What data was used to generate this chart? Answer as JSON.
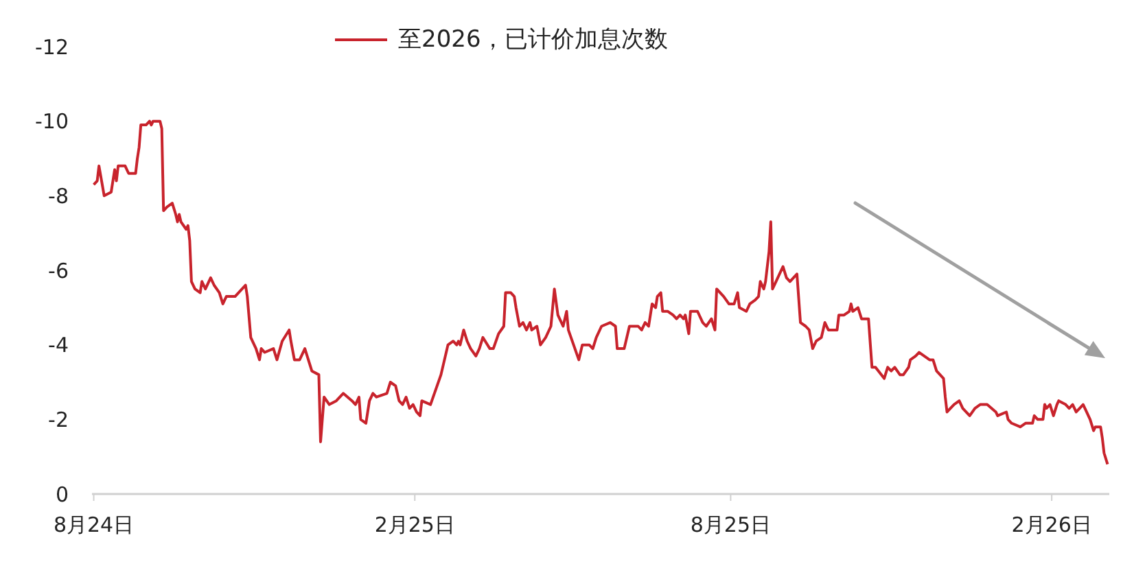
{
  "chart_data": {
    "type": "line",
    "x": [
      "2024-08-01",
      "2024-08-03",
      "2024-08-04",
      "2024-08-07",
      "2024-08-11",
      "2024-08-13",
      "2024-08-14",
      "2024-08-15",
      "2024-08-19",
      "2024-08-21",
      "2024-08-25",
      "2024-08-26",
      "2024-08-27",
      "2024-08-28",
      "2024-08-31",
      "2024-09-02",
      "2024-09-03",
      "2024-09-04",
      "2024-09-08",
      "2024-09-09",
      "2024-09-10",
      "2024-09-12",
      "2024-09-15",
      "2024-09-17",
      "2024-09-18",
      "2024-09-19",
      "2024-09-20",
      "2024-09-23",
      "2024-09-24",
      "2024-09-25",
      "2024-09-26",
      "2024-09-28",
      "2024-10-01",
      "2024-10-02",
      "2024-10-04",
      "2024-10-07",
      "2024-10-09",
      "2024-10-12",
      "2024-10-14",
      "2024-10-16",
      "2024-10-21",
      "2024-10-23",
      "2024-10-27",
      "2024-10-28",
      "2024-10-30",
      "2024-11-02",
      "2024-11-04",
      "2024-11-05",
      "2024-11-07",
      "2024-11-12",
      "2024-11-14",
      "2024-11-17",
      "2024-11-21",
      "2024-11-22",
      "2024-11-24",
      "2024-11-27",
      "2024-11-30",
      "2024-12-02",
      "2024-12-04",
      "2024-12-08",
      "2024-12-09",
      "2024-12-11",
      "2024-12-14",
      "2024-12-18",
      "2024-12-22",
      "2024-12-27",
      "2024-12-29",
      "2024-12-31",
      "2025-01-01",
      "2025-01-04",
      "2025-01-06",
      "2025-01-08",
      "2025-01-10",
      "2025-01-16",
      "2025-01-18",
      "2025-01-21",
      "2025-01-23",
      "2025-01-25",
      "2025-01-27",
      "2025-01-29",
      "2025-01-31",
      "2025-02-02",
      "2025-02-04",
      "2025-02-05",
      "2025-02-10",
      "2025-02-13",
      "2025-02-16",
      "2025-02-20",
      "2025-02-23",
      "2025-02-25",
      "2025-02-26",
      "2025-02-27",
      "2025-03-01",
      "2025-03-03",
      "2025-03-05",
      "2025-03-08",
      "2025-03-10",
      "2025-03-12",
      "2025-03-16",
      "2025-03-18",
      "2025-03-21",
      "2025-03-24",
      "2025-03-25",
      "2025-03-28",
      "2025-03-30",
      "2025-03-31",
      "2025-04-02",
      "2025-04-04",
      "2025-04-06",
      "2025-04-08",
      "2025-04-09",
      "2025-04-12",
      "2025-04-14",
      "2025-04-17",
      "2025-04-20",
      "2025-04-22",
      "2025-04-24",
      "2025-04-27",
      "2025-04-29",
      "2025-04-30",
      "2025-05-03",
      "2025-05-06",
      "2025-05-08",
      "2025-05-12",
      "2025-05-14",
      "2025-05-16",
      "2025-05-19",
      "2025-05-24",
      "2025-05-27",
      "2025-05-28",
      "2025-06-01",
      "2025-06-04",
      "2025-06-09",
      "2025-06-11",
      "2025-06-13",
      "2025-06-15",
      "2025-06-17",
      "2025-06-19",
      "2025-06-20",
      "2025-06-22",
      "2025-06-23",
      "2025-06-26",
      "2025-06-29",
      "2025-07-01",
      "2025-07-03",
      "2025-07-05",
      "2025-07-06",
      "2025-07-08",
      "2025-07-09",
      "2025-07-13",
      "2025-07-16",
      "2025-07-18",
      "2025-07-21",
      "2025-07-23",
      "2025-07-24",
      "2025-07-28",
      "2025-07-31",
      "2025-08-03",
      "2025-08-05",
      "2025-08-06",
      "2025-08-10",
      "2025-08-12",
      "2025-08-15",
      "2025-08-17",
      "2025-08-18",
      "2025-08-20",
      "2025-08-21",
      "2025-08-23",
      "2025-08-24",
      "2025-08-25",
      "2025-08-27",
      "2025-08-29",
      "2025-08-31",
      "2025-09-02",
      "2025-09-04",
      "2025-09-08",
      "2025-09-10",
      "2025-09-13",
      "2025-09-15",
      "2025-09-17",
      "2025-09-19",
      "2025-09-22",
      "2025-09-24",
      "2025-09-26",
      "2025-10-01",
      "2025-10-02",
      "2025-10-05",
      "2025-10-08",
      "2025-10-09",
      "2025-10-10",
      "2025-10-13",
      "2025-10-15",
      "2025-10-19",
      "2025-10-21",
      "2025-10-23",
      "2025-10-28",
      "2025-10-30",
      "2025-11-01",
      "2025-11-03",
      "2025-11-06",
      "2025-11-08",
      "2025-11-11",
      "2025-11-12",
      "2025-11-15",
      "2025-11-17",
      "2025-11-23",
      "2025-11-25",
      "2025-11-27",
      "2025-12-01",
      "2025-12-02",
      "2025-12-03",
      "2025-12-07",
      "2025-12-10",
      "2025-12-12",
      "2025-12-16",
      "2025-12-19",
      "2025-12-22",
      "2025-12-26",
      "2025-12-31",
      "2026-01-01",
      "2026-01-06",
      "2026-01-07",
      "2026-01-09",
      "2026-01-14",
      "2026-01-17",
      "2026-01-21",
      "2026-01-22",
      "2026-01-24",
      "2026-01-27",
      "2026-01-28",
      "2026-01-29",
      "2026-01-31",
      "2026-02-02",
      "2026-02-04",
      "2026-02-05",
      "2026-02-09",
      "2026-02-11",
      "2026-02-13",
      "2026-02-15",
      "2026-02-17",
      "2026-02-19",
      "2026-02-21",
      "2026-02-23",
      "2026-02-25",
      "2026-02-26",
      "2026-03-01",
      "2026-03-02",
      "2026-03-03",
      "2026-03-05"
    ],
    "series": [
      {
        "name": "至2026，已计价加息次数",
        "color": "#c8232c",
        "values": [
          -8.3,
          -8.4,
          -8.8,
          -8.0,
          -8.1,
          -8.7,
          -8.4,
          -8.8,
          -8.8,
          -8.6,
          -8.6,
          -9.0,
          -9.3,
          -9.9,
          -9.9,
          -10.0,
          -9.9,
          -10.0,
          -10.0,
          -9.8,
          -7.6,
          -7.7,
          -7.8,
          -7.5,
          -7.3,
          -7.5,
          -7.3,
          -7.1,
          -7.2,
          -6.8,
          -5.7,
          -5.5,
          -5.4,
          -5.7,
          -5.5,
          -5.8,
          -5.6,
          -5.4,
          -5.1,
          -5.3,
          -5.3,
          -5.4,
          -5.6,
          -5.3,
          -4.2,
          -3.9,
          -3.6,
          -3.9,
          -3.8,
          -3.9,
          -3.6,
          -4.1,
          -4.4,
          -4.1,
          -3.6,
          -3.6,
          -3.9,
          -3.6,
          -3.3,
          -3.2,
          -1.4,
          -2.6,
          -2.4,
          -2.5,
          -2.7,
          -2.5,
          -2.4,
          -2.6,
          -2.0,
          -1.9,
          -2.5,
          -2.7,
          -2.6,
          -2.7,
          -3.0,
          -2.9,
          -2.5,
          -2.4,
          -2.6,
          -2.3,
          -2.4,
          -2.2,
          -2.1,
          -2.5,
          -2.4,
          -2.8,
          -3.2,
          -4.0,
          -4.1,
          -4.0,
          -4.1,
          -4.0,
          -4.4,
          -4.1,
          -3.9,
          -3.7,
          -3.9,
          -4.2,
          -3.9,
          -3.9,
          -4.3,
          -4.5,
          -5.4,
          -5.4,
          -5.3,
          -5.0,
          -4.5,
          -4.6,
          -4.4,
          -4.6,
          -4.4,
          -4.5,
          -4.0,
          -4.2,
          -4.5,
          -5.5,
          -4.8,
          -4.5,
          -4.9,
          -4.4,
          -4.0,
          -3.6,
          -4.0,
          -4.0,
          -3.9,
          -4.2,
          -4.5,
          -4.6,
          -4.5,
          -3.9,
          -3.9,
          -4.5,
          -4.5,
          -4.4,
          -4.6,
          -4.5,
          -5.1,
          -5.0,
          -5.3,
          -5.4,
          -4.9,
          -4.9,
          -4.8,
          -4.7,
          -4.8,
          -4.7,
          -4.8,
          -4.3,
          -4.9,
          -4.9,
          -4.6,
          -4.5,
          -4.7,
          -4.4,
          -5.5,
          -5.3,
          -5.1,
          -5.1,
          -5.4,
          -5.0,
          -4.9,
          -5.1,
          -5.2,
          -5.3,
          -5.7,
          -5.5,
          -5.7,
          -6.5,
          -7.3,
          -5.5,
          -5.7,
          -5.9,
          -6.1,
          -5.8,
          -5.7,
          -5.9,
          -4.6,
          -4.5,
          -4.4,
          -3.9,
          -4.1,
          -4.2,
          -4.6,
          -4.4,
          -4.4,
          -4.8,
          -4.8,
          -4.9,
          -5.1,
          -4.9,
          -5.0,
          -4.7,
          -4.7,
          -3.4,
          -3.4,
          -3.1,
          -3.4,
          -3.3,
          -3.4,
          -3.2,
          -3.2,
          -3.4,
          -3.6,
          -3.7,
          -3.8,
          -3.6,
          -3.6,
          -3.3,
          -3.1,
          -2.6,
          -2.2,
          -2.4,
          -2.5,
          -2.3,
          -2.1,
          -2.3,
          -2.4,
          -2.4,
          -2.2,
          -2.1,
          -2.2,
          -2.0,
          -1.9,
          -1.8,
          -1.9,
          -1.9,
          -2.1,
          -2.0,
          -2.0,
          -2.4,
          -2.3,
          -2.4,
          -2.1,
          -2.4,
          -2.5,
          -2.4,
          -2.3,
          -2.4,
          -2.2,
          -2.3,
          -2.4,
          -2.2,
          -2.0,
          -1.7,
          -1.8,
          -1.8,
          -1.5,
          -1.1,
          -0.8
        ]
      }
    ],
    "xlim": [
      "2024-07-31",
      "2026-03-06"
    ],
    "xticks": [
      {
        "value": "2024-08-01",
        "label": "8月24日"
      },
      {
        "value": "2025-02-01",
        "label": "2月25日"
      },
      {
        "value": "2025-08-01",
        "label": "8月25日"
      },
      {
        "value": "2026-02-01",
        "label": "2月26日"
      }
    ],
    "ylim": [
      0,
      -12
    ],
    "yticks": [
      0,
      -2,
      -4,
      -6,
      -8,
      -10,
      -12
    ],
    "legend": "top"
  }
}
